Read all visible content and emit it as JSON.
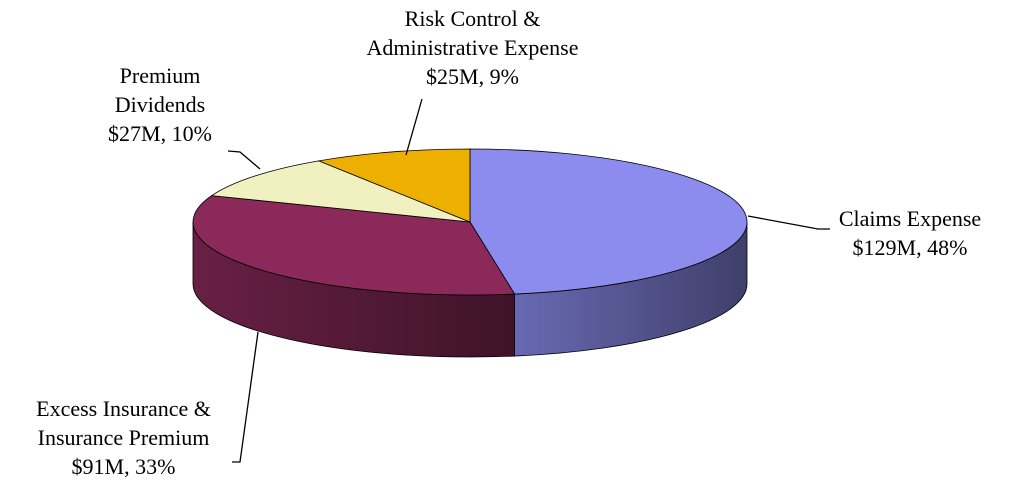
{
  "chart_data": {
    "type": "pie3d",
    "categories": [
      "Claims Expense",
      "Excess Insurance & Insurance Premium",
      "Premium Dividends",
      "Risk Control & Administrative Expense"
    ],
    "values": [
      129,
      91,
      27,
      25
    ],
    "value_labels": [
      "$129M, 48%",
      "$91M, 33%",
      "$27M, 10%",
      "$25M, 9%"
    ],
    "colors": [
      "#8c8cee",
      "#8b2a5a",
      "#f0f0c0",
      "#eeb000"
    ]
  }
}
